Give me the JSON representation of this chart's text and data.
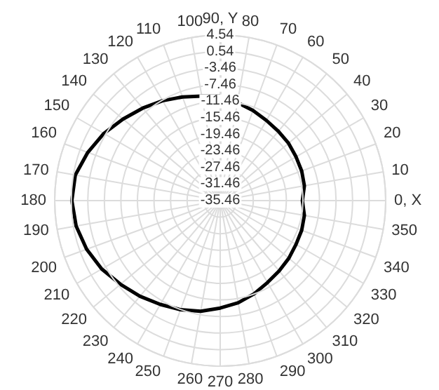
{
  "chart_data": {
    "type": "radar",
    "categories": [
      "90, Y",
      "80",
      "70",
      "60",
      "50",
      "40",
      "30",
      "20",
      "10",
      "0, X",
      "350",
      "340",
      "330",
      "320",
      "310",
      "300",
      "290",
      "280",
      "270",
      "260",
      "250",
      "240",
      "230",
      "220",
      "210",
      "200",
      "190",
      "180",
      "170",
      "160",
      "150",
      "140",
      "130",
      "120",
      "110",
      "100"
    ],
    "series": [
      {
        "color": "#000000",
        "values": [
          -10.2,
          -11.4,
          -12.3,
          -13.1,
          -13.6,
          -13.9,
          -14.3,
          -14.5,
          -14.8,
          -15.6,
          -14.8,
          -14.5,
          -14.3,
          -13.8,
          -13.3,
          -12.6,
          -11.5,
          -10.4,
          -9.5,
          -8.3,
          -7.4,
          -6.5,
          -5.3,
          -4.0,
          -2.4,
          -1.1,
          -0.1,
          0.4,
          0.1,
          -1.4,
          -3.0,
          -4.8,
          -6.3,
          -7.6,
          -8.8,
          -9.8
        ]
      }
    ],
    "ylim": [
      -35.46,
      4.54
    ],
    "yticks": [
      -35.46,
      -31.46,
      -27.46,
      -23.46,
      -19.46,
      -15.46,
      -11.46,
      -7.46,
      -3.46,
      0.54,
      4.54
    ],
    "grid": true,
    "marker": "none",
    "line_style": "solid"
  }
}
